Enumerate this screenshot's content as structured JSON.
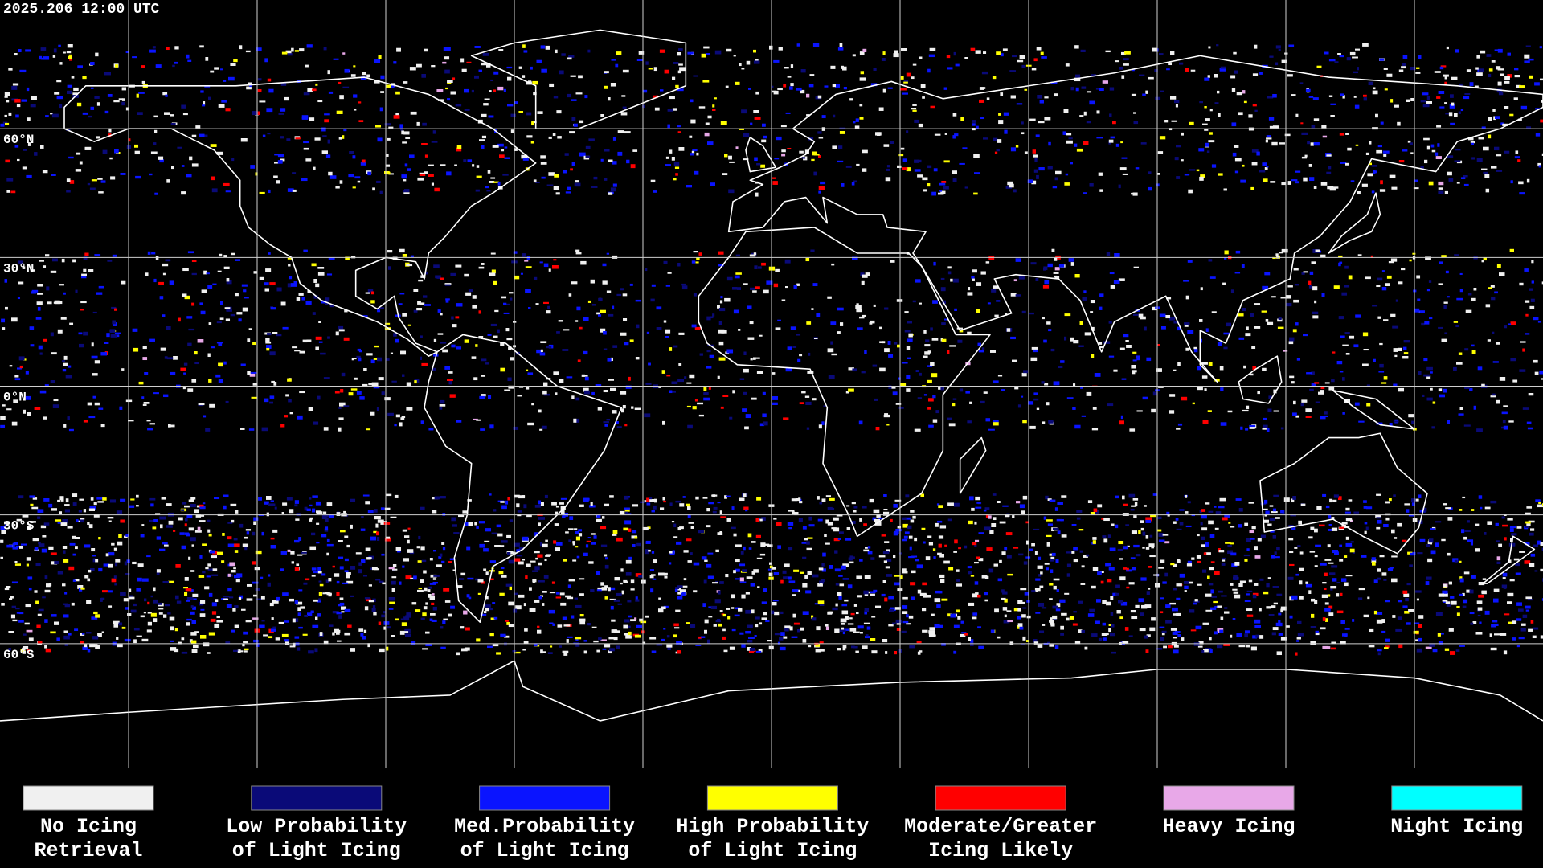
{
  "header": {
    "timestamp": "2025.206 12:00 UTC"
  },
  "map": {
    "latitude_labels": [
      "60°N",
      "30°N",
      "0°N",
      "30°S",
      "60°S"
    ]
  },
  "legend": {
    "items": [
      {
        "lines": [
          "No Icing",
          "Retrieval"
        ],
        "color": "#f0f0f0"
      },
      {
        "lines": [
          "Low Probability",
          "of Light Icing"
        ],
        "color": "#0a0a78"
      },
      {
        "lines": [
          "Med.Probability",
          "of Light Icing"
        ],
        "color": "#0a14ff"
      },
      {
        "lines": [
          "High Probability",
          "of Light Icing"
        ],
        "color": "#ffff00"
      },
      {
        "lines": [
          "Moderate/Greater",
          "Icing Likely"
        ],
        "color": "#ff0000"
      },
      {
        "lines": [
          "Heavy Icing"
        ],
        "color": "#e8a8e8"
      },
      {
        "lines": [
          "Night Icing"
        ],
        "color": "#00ffff"
      }
    ]
  }
}
